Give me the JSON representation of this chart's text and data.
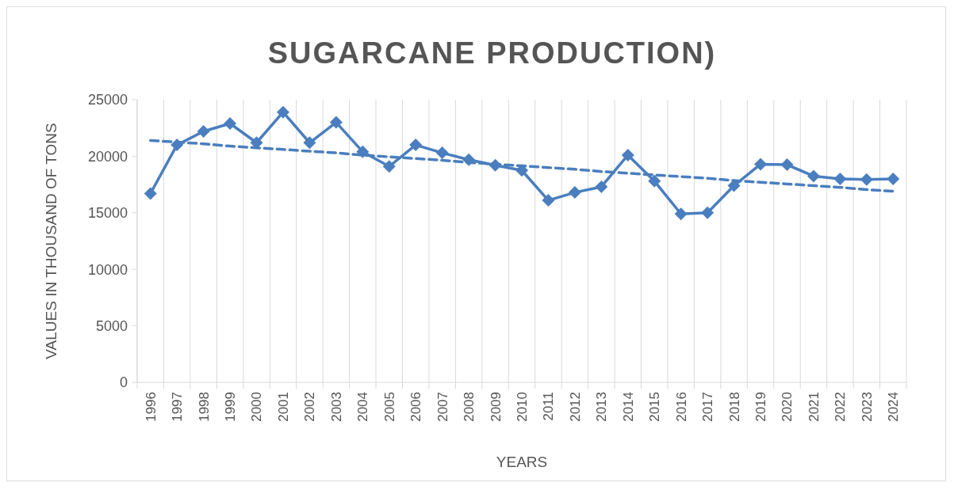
{
  "chart_data": {
    "type": "line",
    "title": "SUGARCANE PRODUCTION)",
    "xlabel": "YEARS",
    "ylabel": "VALUES IN THOUSAND OF TONS",
    "categories": [
      "1996",
      "1997",
      "1998",
      "1999",
      "2000",
      "2001",
      "2002",
      "2003",
      "2004",
      "2005",
      "2006",
      "2007",
      "2008",
      "2009",
      "2010",
      "2011",
      "2012",
      "2013",
      "2014",
      "2015",
      "2016",
      "2017",
      "2018",
      "2019",
      "2020",
      "2021",
      "2022",
      "2023",
      "2024"
    ],
    "series": [
      {
        "color": "#4a7ebf",
        "values": [
          16700,
          21000,
          22200,
          22900,
          21200,
          23900,
          21200,
          23000,
          20400,
          19100,
          21000,
          20300,
          19700,
          19200,
          18750,
          16100,
          16800,
          17300,
          20100,
          17800,
          14900,
          15000,
          17400,
          19300,
          19250,
          18250,
          18000,
          17950,
          18000
        ]
      },
      {
        "type": "line",
        "color": "#4a7ebf",
        "values": [
          21400,
          21250,
          21100,
          20900,
          20750,
          20600,
          20450,
          20300,
          20100,
          19950,
          19800,
          19650,
          19450,
          19300,
          19150,
          19000,
          18850,
          18650,
          18500,
          18350,
          18200,
          18050,
          17850,
          17700,
          17550,
          17400,
          17250,
          17050,
          16900
        ],
        "line_style": "dashed",
        "marker": "none"
      }
    ],
    "ylim": [
      0,
      25000
    ],
    "yticks": [
      0,
      5000,
      10000,
      15000,
      20000,
      25000
    ],
    "grid": "x",
    "marker": "diamond",
    "line_style": "solid"
  }
}
